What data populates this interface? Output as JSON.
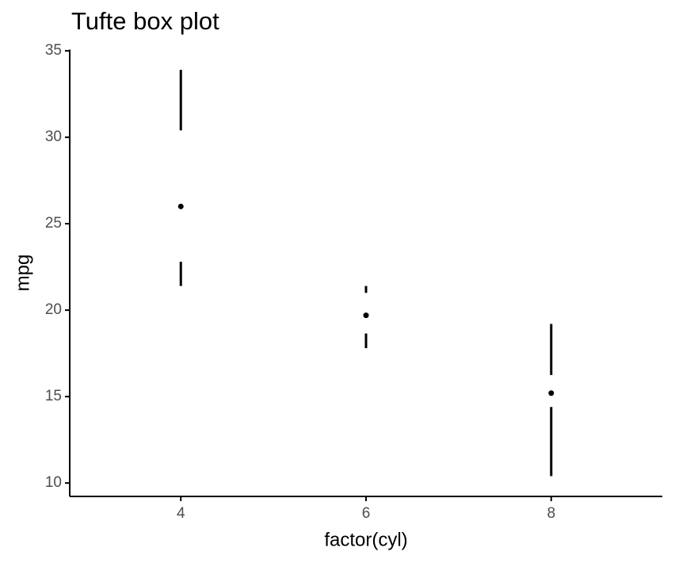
{
  "chart_data": {
    "type": "boxplot",
    "title": "Tufte box plot",
    "x_label": "factor(cyl)",
    "y_label": "mpg",
    "categories": [
      "4",
      "6",
      "8"
    ],
    "min": [
      21.4,
      17.8,
      10.4
    ],
    "q1": [
      22.8,
      18.65,
      14.4
    ],
    "median": [
      26,
      19.7,
      15.2
    ],
    "q3": [
      30.4,
      21,
      16.25
    ],
    "max": [
      33.9,
      21.4,
      19.2
    ],
    "color": "#000000",
    "ylim": [
      9.225,
      35.075
    ],
    "yticks": [
      10,
      15,
      20,
      25,
      30,
      35
    ],
    "grid": false
  }
}
